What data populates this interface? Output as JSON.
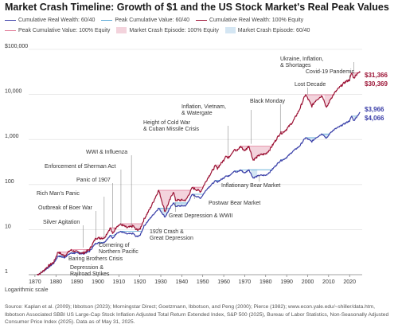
{
  "title": "Market Crash Timeline: Growth of $1 and the US Stock Market's Real Peak Values",
  "legend": [
    {
      "label": "Cumulative Real Wealth: 60/40",
      "kind": "line",
      "color": "#3b3fa8"
    },
    {
      "label": "Peak Cumulative Value: 60/40",
      "kind": "line",
      "color": "#5aa9d6"
    },
    {
      "label": "Cumulative Real Wealth: 100% Equity",
      "kind": "line",
      "color": "#9c1436"
    },
    {
      "label": "Peak Cumulative Value: 100% Equity",
      "kind": "line",
      "color": "#e07a96"
    },
    {
      "label": "Market Crash Episode: 100% Equity",
      "kind": "box",
      "color": "#f3d3dc"
    },
    {
      "label": "Market Crash Episode: 60/40",
      "kind": "box",
      "color": "#d4e6f3"
    }
  ],
  "note": "Logarithmic scale",
  "source": "Source: Kaplan et al. (2009); Ibbotson (2023); Morningstar Direct; Goetzmann, Ibbotson, and Peng (2000); Pierce (1982); www.econ.yale.edu/~shiller/data.htm, Ibbotson Associated SBBI US Large-Cap Stock Inflation Adjusted Total Return Extended Index, S&P 500 (2025), Bureau of Labor Statistics, Non-Seasonally Adjusted Consumer Price Index (2025). Data as of May 31, 2025.",
  "chart_data": {
    "type": "line",
    "title": "Market Crash Timeline: Growth of $1 and the US Stock Market's Real Peak Values",
    "y_scale": "log",
    "ylim": [
      1,
      100000
    ],
    "xlim": [
      1867,
      2026
    ],
    "y_ticks": [
      {
        "value": 1,
        "label": "1"
      },
      {
        "value": 10,
        "label": "10"
      },
      {
        "value": 100,
        "label": "100"
      },
      {
        "value": 1000,
        "label": "1,000"
      },
      {
        "value": 10000,
        "label": "10,000"
      },
      {
        "value": 100000,
        "label": "$100,000"
      }
    ],
    "x_ticks": [
      1870,
      1880,
      1890,
      1900,
      1910,
      1920,
      1930,
      1940,
      1950,
      1960,
      1970,
      1980,
      1990,
      2000,
      2010,
      2020
    ],
    "grid": true,
    "series": [
      {
        "name": "Cumulative Real Wealth: 100% Equity",
        "color": "#9c1436",
        "points": [
          [
            1871,
            1
          ],
          [
            1873,
            1.1
          ],
          [
            1876,
            1.5
          ],
          [
            1879,
            1.9
          ],
          [
            1881,
            3.2
          ],
          [
            1884,
            2.6
          ],
          [
            1887,
            3.5
          ],
          [
            1890,
            3.2
          ],
          [
            1893,
            3
          ],
          [
            1896,
            3.6
          ],
          [
            1899,
            6.5
          ],
          [
            1903,
            6.5
          ],
          [
            1906,
            11
          ],
          [
            1907,
            8
          ],
          [
            1909,
            12
          ],
          [
            1911,
            13
          ],
          [
            1914,
            11
          ],
          [
            1917,
            12
          ],
          [
            1918,
            10
          ],
          [
            1920,
            10
          ],
          [
            1922,
            17
          ],
          [
            1925,
            30
          ],
          [
            1929,
            75
          ],
          [
            1932,
            25
          ],
          [
            1936,
            70
          ],
          [
            1937,
            45
          ],
          [
            1942,
            45
          ],
          [
            1945,
            85
          ],
          [
            1949,
            70
          ],
          [
            1952,
            130
          ],
          [
            1956,
            260
          ],
          [
            1957,
            230
          ],
          [
            1960,
            350
          ],
          [
            1961,
            450
          ],
          [
            1962,
            380
          ],
          [
            1965,
            600
          ],
          [
            1966,
            540
          ],
          [
            1968,
            700
          ],
          [
            1970,
            560
          ],
          [
            1972,
            720
          ],
          [
            1974,
            350
          ],
          [
            1977,
            450
          ],
          [
            1980,
            480
          ],
          [
            1982,
            600
          ],
          [
            1985,
            1000
          ],
          [
            1987,
            1400
          ],
          [
            1988,
            1400
          ],
          [
            1990,
            1700
          ],
          [
            1993,
            2500
          ],
          [
            1996,
            4500
          ],
          [
            1999,
            10000
          ],
          [
            2002,
            5500
          ],
          [
            2004,
            7500
          ],
          [
            2007,
            9500
          ],
          [
            2009,
            5000
          ],
          [
            2011,
            8000
          ],
          [
            2013,
            11000
          ],
          [
            2015,
            14000
          ],
          [
            2018,
            19000
          ],
          [
            2020,
            21000
          ],
          [
            2021,
            30000
          ],
          [
            2022,
            23000
          ],
          [
            2024,
            31000
          ],
          [
            2025,
            30369
          ]
        ]
      },
      {
        "name": "Cumulative Real Wealth: 60/40",
        "color": "#3b3fa8",
        "points": [
          [
            1871,
            1
          ],
          [
            1873,
            1.1
          ],
          [
            1876,
            1.4
          ],
          [
            1879,
            1.8
          ],
          [
            1881,
            2.6
          ],
          [
            1884,
            2.4
          ],
          [
            1887,
            3
          ],
          [
            1890,
            3
          ],
          [
            1893,
            2.9
          ],
          [
            1896,
            3.3
          ],
          [
            1899,
            5
          ],
          [
            1903,
            5.2
          ],
          [
            1906,
            7.5
          ],
          [
            1907,
            6.3
          ],
          [
            1909,
            8.5
          ],
          [
            1911,
            9
          ],
          [
            1914,
            8
          ],
          [
            1917,
            8.2
          ],
          [
            1918,
            7
          ],
          [
            1920,
            7.3
          ],
          [
            1922,
            12
          ],
          [
            1925,
            18
          ],
          [
            1929,
            30
          ],
          [
            1932,
            19
          ],
          [
            1936,
            40
          ],
          [
            1937,
            33
          ],
          [
            1942,
            34
          ],
          [
            1945,
            60
          ],
          [
            1949,
            50
          ],
          [
            1952,
            80
          ],
          [
            1956,
            120
          ],
          [
            1957,
            115
          ],
          [
            1960,
            140
          ],
          [
            1961,
            160
          ],
          [
            1962,
            150
          ],
          [
            1965,
            200
          ],
          [
            1966,
            185
          ],
          [
            1968,
            210
          ],
          [
            1970,
            180
          ],
          [
            1972,
            215
          ],
          [
            1974,
            140
          ],
          [
            1977,
            160
          ],
          [
            1980,
            160
          ],
          [
            1982,
            190
          ],
          [
            1985,
            270
          ],
          [
            1987,
            340
          ],
          [
            1988,
            350
          ],
          [
            1990,
            400
          ],
          [
            1993,
            550
          ],
          [
            1996,
            700
          ],
          [
            1999,
            1100
          ],
          [
            2002,
            900
          ],
          [
            2004,
            1100
          ],
          [
            2007,
            1350
          ],
          [
            2009,
            1050
          ],
          [
            2011,
            1450
          ],
          [
            2013,
            1700
          ],
          [
            2015,
            1900
          ],
          [
            2018,
            2300
          ],
          [
            2020,
            2600
          ],
          [
            2021,
            3300
          ],
          [
            2022,
            2600
          ],
          [
            2024,
            3500
          ],
          [
            2025,
            3966
          ]
        ]
      }
    ],
    "end_labels": [
      {
        "series": "Cumulative Real Wealth: 100% Equity",
        "label": "$31,366",
        "value": 31366,
        "color": "#9c1436"
      },
      {
        "series": "Cumulative Real Wealth: 100% Equity",
        "label": "$30,369",
        "value": 30369,
        "color": "#9c1436"
      },
      {
        "series": "Cumulative Real Wealth: 60/40",
        "label": "$3,966",
        "value": 3966,
        "color": "#3b3fa8"
      },
      {
        "series": "Cumulative Real Wealth: 60/40",
        "label": "$4,066",
        "value": 4066,
        "color": "#3b3fa8"
      }
    ],
    "equity_crash_episodes": [
      [
        1873,
        1879
      ],
      [
        1883,
        1886
      ],
      [
        1893,
        1896
      ],
      [
        1903,
        1905
      ],
      [
        1907,
        1908
      ],
      [
        1912,
        1924
      ],
      [
        1929,
        1949
      ],
      [
        1966,
        1984
      ],
      [
        2000,
        2006
      ],
      [
        2008,
        2012
      ],
      [
        2022,
        2024
      ]
    ],
    "balanced_crash_episodes": [
      [
        1929,
        1936
      ],
      [
        1937,
        1944
      ],
      [
        1973,
        1976
      ],
      [
        2000,
        2003
      ],
      [
        2008,
        2010
      ],
      [
        2022,
        2024
      ]
    ],
    "annotations": [
      {
        "label": "Depression & Railroad Strikes",
        "year": 1873,
        "value": 1.1
      },
      {
        "label": "Baring Brothers Crisis",
        "year": 1890,
        "value": 2.8
      },
      {
        "label": "Silver Agitation",
        "year": 1893,
        "value": 4.0
      },
      {
        "label": "Outbreak of Boer War",
        "year": 1899,
        "value": 6.5
      },
      {
        "label": "Rich Man's Panic",
        "year": 1903,
        "value": 6.5
      },
      {
        "label": "Panic of 1907",
        "year": 1907,
        "value": 11
      },
      {
        "label": "Enforcement of Sherman Act",
        "year": 1911,
        "value": 13
      },
      {
        "label": "WWI & Influenza",
        "year": 1916,
        "value": 12
      },
      {
        "label": "Cornering of Northern Pacific",
        "year": 1901,
        "value": 4.5
      },
      {
        "label": "1929 Crash & Great Depression",
        "year": 1929,
        "value": 10
      },
      {
        "label": "Great Depression & WWII",
        "year": 1937,
        "value": 40
      },
      {
        "label": "Postwar Bear Market",
        "year": 1946,
        "value": 60
      },
      {
        "label": "Height of Cold War & Cuban Missile Crisis",
        "year": 1962,
        "value": 450
      },
      {
        "label": "Inflation, Vietnam, & Watergate",
        "year": 1973,
        "value": 800
      },
      {
        "label": "Inflationary Bear Market",
        "year": 1977,
        "value": 160
      },
      {
        "label": "Black Monday",
        "year": 1987,
        "value": 1400
      },
      {
        "label": "Lost Decade",
        "year": 2000,
        "value": 10000
      },
      {
        "label": "Covid-19 Pandemic",
        "year": 2020,
        "value": 21000
      },
      {
        "label": "Ukraine, Inflation, & Shortages",
        "year": 2022,
        "value": 28000
      }
    ]
  }
}
